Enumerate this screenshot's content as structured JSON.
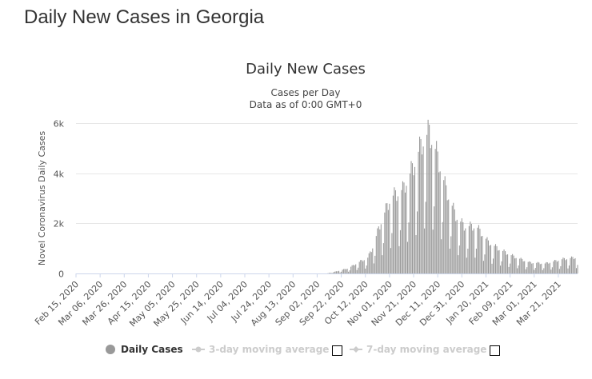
{
  "page": {
    "title": "Daily New Cases in Georgia"
  },
  "chart_data": {
    "type": "bar",
    "title": "Daily New Cases",
    "subtitle": "Cases per Day",
    "subtitle2": "Data as of 0:00 GMT+0",
    "ylabel": "Novel Coronavirus Daily Cases",
    "xlabel": "",
    "ylim": [
      0,
      6000
    ],
    "yticks": [
      0,
      2000,
      4000,
      6000
    ],
    "ytick_labels": [
      "0",
      "2k",
      "4k",
      "6k"
    ],
    "grid": true,
    "x_start": "2020-02-15",
    "x_end": "2021-04-06",
    "xticks": [
      "2020-02-15",
      "2020-03-06",
      "2020-03-26",
      "2020-04-15",
      "2020-05-05",
      "2020-05-25",
      "2020-06-14",
      "2020-07-04",
      "2020-07-24",
      "2020-08-13",
      "2020-09-02",
      "2020-09-22",
      "2020-10-12",
      "2020-11-01",
      "2020-11-21",
      "2020-12-11",
      "2020-12-31",
      "2021-01-20",
      "2021-02-09",
      "2021-03-01",
      "2021-03-21"
    ],
    "xtick_labels": [
      "Feb 15, 2020",
      "Mar 06, 2020",
      "Mar 26, 2020",
      "Apr 15, 2020",
      "May 05, 2020",
      "May 25, 2020",
      "Jun 14, 2020",
      "Jul 04, 2020",
      "Jul 24, 2020",
      "Aug 13, 2020",
      "Sep 02, 2020",
      "Sep 22, 2020",
      "Oct 12, 2020",
      "Nov 01, 2020",
      "Nov 21, 2020",
      "Dec 11, 2020",
      "Dec 31, 2020",
      "Jan 20, 2021",
      "Feb 09, 2021",
      "Mar 01, 2021",
      "Mar 21, 2021"
    ],
    "series": [
      {
        "name": "Daily Cases",
        "color": "#999999",
        "anchors": [
          [
            "2020-02-15",
            0
          ],
          [
            "2020-09-10",
            0
          ],
          [
            "2020-09-18",
            80
          ],
          [
            "2020-09-28",
            200
          ],
          [
            "2020-10-06",
            420
          ],
          [
            "2020-10-14",
            600
          ],
          [
            "2020-10-18",
            1000
          ],
          [
            "2020-10-24",
            1850
          ],
          [
            "2020-11-02",
            2900
          ],
          [
            "2020-11-12",
            3200
          ],
          [
            "2020-11-20",
            4000
          ],
          [
            "2020-11-28",
            5000
          ],
          [
            "2020-12-04",
            5400
          ],
          [
            "2020-12-10",
            4600
          ],
          [
            "2020-12-18",
            3200
          ],
          [
            "2020-12-26",
            2200
          ],
          [
            "2021-01-02",
            1800
          ],
          [
            "2021-01-12",
            1800
          ],
          [
            "2021-01-22",
            1200
          ],
          [
            "2021-02-01",
            900
          ],
          [
            "2021-02-12",
            650
          ],
          [
            "2021-02-25",
            420
          ],
          [
            "2021-03-10",
            380
          ],
          [
            "2021-03-25",
            550
          ],
          [
            "2021-04-06",
            620
          ]
        ],
        "weekly_pattern": [
          1.0,
          0.35,
          0.55,
          1.05,
          1.15,
          1.1,
          0.95
        ]
      },
      {
        "name": "3-day moving average",
        "color": "#cccccc",
        "visible": false
      },
      {
        "name": "7-day moving average",
        "color": "#cccccc",
        "visible": false
      }
    ],
    "legend_position": "bottom-center"
  }
}
